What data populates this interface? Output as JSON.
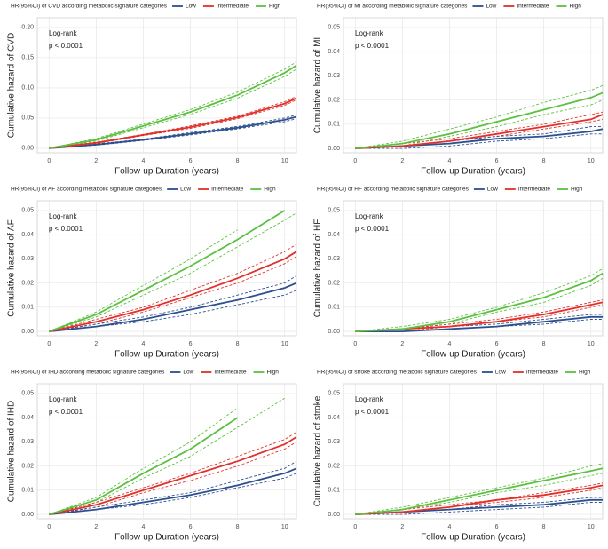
{
  "chart_data": [
    {
      "type": "line",
      "legend_title": "HR(95%CI) of CVD according metabolic signature categories",
      "xlabel": "Follow-up Duration (years)",
      "ylabel": "Cumulative hazard of CVD",
      "annotations": [
        "Log-rank",
        "p < 0.0001"
      ],
      "x": [
        0,
        2,
        4,
        6,
        8,
        10,
        10.5
      ],
      "xlim": [
        -0.5,
        10.5
      ],
      "xticks": [
        0,
        2,
        4,
        6,
        8,
        10
      ],
      "ylim": [
        -0.0075,
        0.216
      ],
      "yticks": [
        {
          "value": 0,
          "label": "0.00"
        },
        {
          "value": 0.05,
          "label": "0.05"
        },
        {
          "value": 0.1,
          "label": "0.10"
        },
        {
          "value": 0.15,
          "label": "0.15"
        },
        {
          "value": 0.2,
          "label": "0.20"
        }
      ],
      "grid": true,
      "series": [
        {
          "name": "Low",
          "color": "#2c4f8f",
          "values": [
            0,
            0.006,
            0.014,
            0.024,
            0.034,
            0.047,
            0.052
          ],
          "lower": [
            0,
            0.005,
            0.013,
            0.022,
            0.032,
            0.044,
            0.049
          ],
          "upper": [
            0,
            0.007,
            0.015,
            0.026,
            0.036,
            0.05,
            0.055
          ]
        },
        {
          "name": "Intermediate",
          "color": "#e0302a",
          "values": [
            0,
            0.009,
            0.022,
            0.035,
            0.051,
            0.074,
            0.083
          ],
          "lower": [
            0,
            0.008,
            0.021,
            0.033,
            0.049,
            0.071,
            0.08
          ],
          "upper": [
            0,
            0.01,
            0.023,
            0.037,
            0.053,
            0.077,
            0.086
          ]
        },
        {
          "name": "High",
          "color": "#5cc040",
          "values": [
            0,
            0.014,
            0.037,
            0.06,
            0.088,
            0.125,
            0.137
          ],
          "lower": [
            0,
            0.012,
            0.034,
            0.056,
            0.083,
            0.119,
            0.131
          ],
          "upper": [
            0,
            0.016,
            0.04,
            0.064,
            0.093,
            0.131,
            0.143
          ]
        }
      ]
    },
    {
      "type": "line",
      "legend_title": "HR(95%CI) of MI according metabolic signature categories",
      "xlabel": "Follow-up Duration (years)",
      "ylabel": "Cumulative hazard of MI",
      "annotations": [
        "Log-rank",
        "p < 0.0001"
      ],
      "x": [
        0,
        2,
        4,
        6,
        8,
        10,
        10.5
      ],
      "xlim": [
        -0.5,
        10.5
      ],
      "xticks": [
        0,
        2,
        4,
        6,
        8,
        10
      ],
      "ylim": [
        -0.0018,
        0.054
      ],
      "yticks": [
        {
          "value": 0,
          "label": "0.00"
        },
        {
          "value": 0.01,
          "label": "0.01"
        },
        {
          "value": 0.02,
          "label": "0.02"
        },
        {
          "value": 0.03,
          "label": "0.03"
        },
        {
          "value": 0.04,
          "label": "0.04"
        },
        {
          "value": 0.05,
          "label": "0.05"
        }
      ],
      "grid": true,
      "series": [
        {
          "name": "Low",
          "color": "#2c4f8f",
          "values": [
            0,
            0.001,
            0.002,
            0.004,
            0.005,
            0.007,
            0.008
          ],
          "lower": [
            0,
            0,
            0.001,
            0.003,
            0.004,
            0.006,
            0.006
          ],
          "upper": [
            0,
            0.001,
            0.003,
            0.005,
            0.006,
            0.009,
            0.009
          ]
        },
        {
          "name": "Intermediate",
          "color": "#e0302a",
          "values": [
            0,
            0.001,
            0.003,
            0.006,
            0.009,
            0.012,
            0.014
          ],
          "lower": [
            0,
            0.001,
            0.003,
            0.005,
            0.008,
            0.011,
            0.012
          ],
          "upper": [
            0,
            0.002,
            0.004,
            0.007,
            0.01,
            0.014,
            0.015
          ]
        },
        {
          "name": "High",
          "color": "#5cc040",
          "values": [
            0,
            0.002,
            0.006,
            0.011,
            0.016,
            0.021,
            0.023
          ],
          "lower": [
            0,
            0.001,
            0.005,
            0.009,
            0.014,
            0.018,
            0.02
          ],
          "upper": [
            0,
            0.003,
            0.008,
            0.013,
            0.019,
            0.024,
            0.026
          ]
        }
      ]
    },
    {
      "type": "line",
      "legend_title": "HR(95%CI) of AF according metabolic signature categories",
      "xlabel": "Follow-up Duration (years)",
      "ylabel": "Cumulative hazard of AF",
      "annotations": [
        "Log-rank",
        "p < 0.0001"
      ],
      "x": [
        0,
        2,
        4,
        6,
        8,
        10,
        10.5
      ],
      "xlim": [
        -0.5,
        10.5
      ],
      "xticks": [
        0,
        2,
        4,
        6,
        8,
        10
      ],
      "ylim": [
        -0.0018,
        0.054
      ],
      "yticks": [
        {
          "value": 0,
          "label": "0.00"
        },
        {
          "value": 0.01,
          "label": "0.01"
        },
        {
          "value": 0.02,
          "label": "0.02"
        },
        {
          "value": 0.03,
          "label": "0.03"
        },
        {
          "value": 0.04,
          "label": "0.04"
        },
        {
          "value": 0.05,
          "label": "0.05"
        }
      ],
      "grid": true,
      "series": [
        {
          "name": "Low",
          "color": "#2c4f8f",
          "values": [
            0,
            0.002,
            0.005,
            0.009,
            0.013,
            0.018,
            0.02
          ],
          "lower": [
            0,
            0.002,
            0.004,
            0.007,
            0.011,
            0.015,
            0.017
          ],
          "upper": [
            0,
            0.003,
            0.006,
            0.01,
            0.015,
            0.02,
            0.023
          ]
        },
        {
          "name": "Intermediate",
          "color": "#e0302a",
          "values": [
            0,
            0.004,
            0.009,
            0.015,
            0.022,
            0.03,
            0.033
          ],
          "lower": [
            0,
            0.003,
            0.008,
            0.014,
            0.02,
            0.028,
            0.031
          ],
          "upper": [
            0,
            0.005,
            0.01,
            0.017,
            0.024,
            0.033,
            0.036
          ]
        },
        {
          "name": "High",
          "color": "#5cc040",
          "values": [
            0,
            0.007,
            0.017,
            0.027,
            0.038,
            0.05,
            null
          ],
          "lower": [
            0,
            0.006,
            0.015,
            0.024,
            0.035,
            0.046,
            0.049
          ],
          "upper": [
            0,
            0.008,
            0.019,
            0.03,
            0.042,
            null,
            null
          ]
        }
      ]
    },
    {
      "type": "line",
      "legend_title": "HR(95%CI) of HF according metabolic signature categories",
      "xlabel": "Follow-up Duration (years)",
      "ylabel": "Cumulative hazard of HF",
      "annotations": [
        "Log-rank",
        "p < 0.0001"
      ],
      "x": [
        0,
        2,
        4,
        6,
        8,
        10,
        10.5
      ],
      "xlim": [
        -0.5,
        10.5
      ],
      "xticks": [
        0,
        2,
        4,
        6,
        8,
        10
      ],
      "ylim": [
        -0.0018,
        0.054
      ],
      "yticks": [
        {
          "value": 0,
          "label": "0.00"
        },
        {
          "value": 0.01,
          "label": "0.01"
        },
        {
          "value": 0.02,
          "label": "0.02"
        },
        {
          "value": 0.03,
          "label": "0.03"
        },
        {
          "value": 0.04,
          "label": "0.04"
        },
        {
          "value": 0.05,
          "label": "0.05"
        }
      ],
      "grid": true,
      "series": [
        {
          "name": "Low",
          "color": "#2c4f8f",
          "values": [
            0,
            0,
            0.001,
            0.002,
            0.004,
            0.006,
            0.006
          ],
          "lower": [
            0,
            0,
            0.001,
            0.002,
            0.003,
            0.005,
            0.005
          ],
          "upper": [
            0,
            0.001,
            0.002,
            0.003,
            0.005,
            0.007,
            0.007
          ]
        },
        {
          "name": "Intermediate",
          "color": "#e0302a",
          "values": [
            0,
            0.001,
            0.002,
            0.004,
            0.007,
            0.011,
            0.012
          ],
          "lower": [
            0,
            0,
            0.002,
            0.004,
            0.006,
            0.01,
            0.011
          ],
          "upper": [
            0,
            0.001,
            0.003,
            0.005,
            0.008,
            0.012,
            0.013
          ]
        },
        {
          "name": "High",
          "color": "#5cc040",
          "values": [
            0,
            0.001,
            0.004,
            0.009,
            0.014,
            0.021,
            0.024
          ],
          "lower": [
            0,
            0.001,
            0.003,
            0.008,
            0.012,
            0.019,
            0.022
          ],
          "upper": [
            0,
            0.002,
            0.005,
            0.01,
            0.016,
            0.023,
            0.026
          ]
        }
      ]
    },
    {
      "type": "line",
      "legend_title": "HR(95%CI) of IHD according metabolic signature categories",
      "xlabel": "Follow-up Duration (years)",
      "ylabel": "Cumulative hazard of IHD",
      "annotations": [
        "Log-rank",
        "p < 0.0001"
      ],
      "x": [
        0,
        2,
        4,
        6,
        8,
        10,
        10.5
      ],
      "xlim": [
        -0.5,
        10.5
      ],
      "xticks": [
        0,
        2,
        4,
        6,
        8,
        10
      ],
      "ylim": [
        -0.0018,
        0.054
      ],
      "yticks": [
        {
          "value": 0,
          "label": "0.00"
        },
        {
          "value": 0.01,
          "label": "0.01"
        },
        {
          "value": 0.02,
          "label": "0.02"
        },
        {
          "value": 0.03,
          "label": "0.03"
        },
        {
          "value": 0.04,
          "label": "0.04"
        },
        {
          "value": 0.05,
          "label": "0.05"
        }
      ],
      "grid": true,
      "series": [
        {
          "name": "Low",
          "color": "#2c4f8f",
          "values": [
            0,
            0.002,
            0.005,
            0.008,
            0.012,
            0.017,
            0.019
          ],
          "lower": [
            0,
            0.002,
            0.004,
            0.007,
            0.011,
            0.015,
            0.017
          ],
          "upper": [
            0,
            0.003,
            0.006,
            0.009,
            0.014,
            0.019,
            0.022
          ]
        },
        {
          "name": "Intermediate",
          "color": "#e0302a",
          "values": [
            0,
            0.004,
            0.01,
            0.016,
            0.022,
            0.029,
            0.032
          ],
          "lower": [
            0,
            0.003,
            0.009,
            0.014,
            0.02,
            0.027,
            0.03
          ],
          "upper": [
            0,
            0.005,
            0.011,
            0.017,
            0.024,
            0.031,
            0.034
          ]
        },
        {
          "name": "High",
          "color": "#5cc040",
          "values": [
            0,
            0.006,
            0.017,
            0.027,
            0.04,
            null,
            null
          ],
          "lower": [
            0,
            0.005,
            0.015,
            0.024,
            0.036,
            0.048,
            null
          ],
          "upper": [
            0,
            0.007,
            0.019,
            0.03,
            0.044,
            null,
            null
          ]
        }
      ]
    },
    {
      "type": "line",
      "legend_title": "HR(95%CI) of stroke according metabolic signature categories",
      "xlabel": "Follow-up Duration (years)",
      "ylabel": "Cumulative hazard of stroke",
      "annotations": [
        "Log-rank",
        "p < 0.0001"
      ],
      "x": [
        0,
        2,
        4,
        6,
        8,
        10,
        10.5
      ],
      "xlim": [
        -0.5,
        10.5
      ],
      "xticks": [
        0,
        2,
        4,
        6,
        8,
        10
      ],
      "ylim": [
        -0.0018,
        0.054
      ],
      "yticks": [
        {
          "value": 0,
          "label": "0.00"
        },
        {
          "value": 0.01,
          "label": "0.01"
        },
        {
          "value": 0.02,
          "label": "0.02"
        },
        {
          "value": 0.03,
          "label": "0.03"
        },
        {
          "value": 0.04,
          "label": "0.04"
        },
        {
          "value": 0.05,
          "label": "0.05"
        }
      ],
      "grid": true,
      "series": [
        {
          "name": "Low",
          "color": "#2c4f8f",
          "values": [
            0,
            0.001,
            0.002,
            0.003,
            0.004,
            0.006,
            0.006
          ],
          "lower": [
            0,
            0,
            0.001,
            0.002,
            0.003,
            0.005,
            0.005
          ],
          "upper": [
            0,
            0.001,
            0.002,
            0.004,
            0.005,
            0.007,
            0.007
          ]
        },
        {
          "name": "Intermediate",
          "color": "#e0302a",
          "values": [
            0,
            0.001,
            0.003,
            0.006,
            0.008,
            0.011,
            0.012
          ],
          "lower": [
            0,
            0.001,
            0.003,
            0.005,
            0.007,
            0.01,
            0.011
          ],
          "upper": [
            0,
            0.002,
            0.004,
            0.006,
            0.009,
            0.012,
            0.013
          ]
        },
        {
          "name": "High",
          "color": "#5cc040",
          "values": [
            0,
            0.002,
            0.006,
            0.01,
            0.014,
            0.018,
            0.019
          ],
          "lower": [
            0,
            0.002,
            0.005,
            0.009,
            0.012,
            0.016,
            0.017
          ],
          "upper": [
            0,
            0.003,
            0.007,
            0.011,
            0.015,
            0.02,
            0.021
          ]
        }
      ]
    }
  ]
}
